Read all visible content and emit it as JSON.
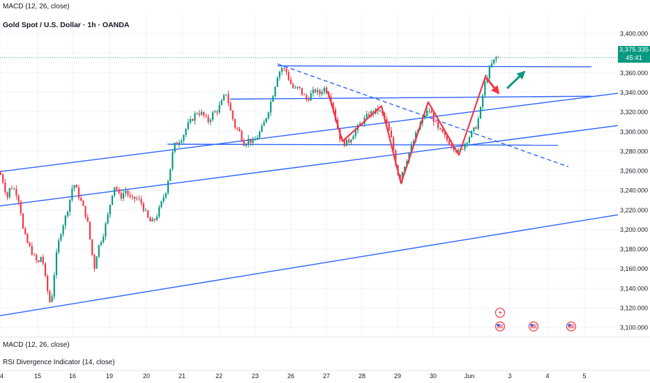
{
  "header": {
    "indicator_top": "MACD (12, 26, close)",
    "symbol_title": "Gold Spot / U.S. Dollar · 1h · OANDA"
  },
  "indicators_bottom": {
    "macd": "MACD (12, 26, close)",
    "rsi": "RSI Divergence Indicator (14, close)"
  },
  "price_badge": {
    "price": "3,375.335",
    "countdown": "45:41",
    "color": "#089981"
  },
  "colors": {
    "up": "#089981",
    "down": "#f23645",
    "trendline": "#2962ff",
    "pattern": "#f23645"
  },
  "chart_data": {
    "type": "candlestick",
    "ylim": [
      3093,
      3420
    ],
    "y_ticks": [
      3100,
      3120,
      3140,
      3160,
      3180,
      3200,
      3220,
      3240,
      3260,
      3280,
      3300,
      3320,
      3340,
      3360,
      3380,
      3400
    ],
    "y_tick_labels": [
      "3,100.000",
      "3,120.000",
      "3,140.000",
      "3,160.000",
      "3,180.000",
      "3,200.000",
      "3,220.000",
      "3,240.000",
      "3,260.000",
      "3,280.000",
      "3,300.000",
      "3,320.000",
      "3,340.000",
      "3,360.000",
      "3,380.000",
      "3,400.000"
    ],
    "x_ticks": [
      "4",
      "15",
      "16",
      "19",
      "20",
      "21",
      "22",
      "23",
      "26",
      "27",
      "28",
      "29",
      "30",
      "Jun",
      "3",
      "4",
      "5"
    ],
    "x_tick_index": [
      0,
      54,
      104,
      157,
      210,
      261,
      314,
      366,
      417,
      468,
      519,
      570,
      621,
      673,
      731,
      785,
      838
    ],
    "last_price": 3375.335,
    "anchors": [
      [
        0,
        3258
      ],
      [
        5,
        3248
      ],
      [
        10,
        3232
      ],
      [
        15,
        3244
      ],
      [
        22,
        3240
      ],
      [
        28,
        3228
      ],
      [
        33,
        3200
      ],
      [
        38,
        3188
      ],
      [
        45,
        3178
      ],
      [
        50,
        3170
      ],
      [
        55,
        3165
      ],
      [
        60,
        3175
      ],
      [
        65,
        3150
      ],
      [
        70,
        3130
      ],
      [
        73,
        3122
      ],
      [
        77,
        3150
      ],
      [
        82,
        3180
      ],
      [
        88,
        3200
      ],
      [
        95,
        3215
      ],
      [
        100,
        3230
      ],
      [
        105,
        3248
      ],
      [
        110,
        3240
      ],
      [
        118,
        3225
      ],
      [
        125,
        3210
      ],
      [
        130,
        3185
      ],
      [
        135,
        3160
      ],
      [
        140,
        3180
      ],
      [
        148,
        3195
      ],
      [
        155,
        3215
      ],
      [
        160,
        3235
      ],
      [
        165,
        3246
      ],
      [
        172,
        3232
      ],
      [
        180,
        3240
      ],
      [
        188,
        3230
      ],
      [
        195,
        3232
      ],
      [
        202,
        3228
      ],
      [
        208,
        3218
      ],
      [
        214,
        3208
      ],
      [
        220,
        3208
      ],
      [
        226,
        3216
      ],
      [
        232,
        3228
      ],
      [
        238,
        3240
      ],
      [
        244,
        3262
      ],
      [
        249,
        3285
      ],
      [
        256,
        3290
      ],
      [
        262,
        3295
      ],
      [
        268,
        3305
      ],
      [
        275,
        3312
      ],
      [
        282,
        3320
      ],
      [
        290,
        3318
      ],
      [
        298,
        3310
      ],
      [
        305,
        3318
      ],
      [
        312,
        3322
      ],
      [
        318,
        3330
      ],
      [
        324,
        3340
      ],
      [
        330,
        3322
      ],
      [
        337,
        3305
      ],
      [
        343,
        3300
      ],
      [
        350,
        3288
      ],
      [
        357,
        3292
      ],
      [
        363,
        3288
      ],
      [
        370,
        3296
      ],
      [
        377,
        3305
      ],
      [
        385,
        3322
      ],
      [
        392,
        3340
      ],
      [
        398,
        3358
      ],
      [
        404,
        3365
      ],
      [
        410,
        3362
      ],
      [
        416,
        3350
      ],
      [
        422,
        3342
      ],
      [
        428,
        3345
      ],
      [
        434,
        3338
      ],
      [
        440,
        3332
      ],
      [
        446,
        3338
      ],
      [
        452,
        3342
      ],
      [
        458,
        3338
      ],
      [
        464,
        3345
      ],
      [
        470,
        3340
      ],
      [
        476,
        3330
      ],
      [
        482,
        3310
      ],
      [
        488,
        3292
      ],
      [
        494,
        3288
      ],
      [
        500,
        3290
      ],
      [
        507,
        3298
      ],
      [
        514,
        3305
      ],
      [
        522,
        3312
      ],
      [
        530,
        3318
      ],
      [
        536,
        3320
      ],
      [
        542,
        3322
      ],
      [
        548,
        3318
      ],
      [
        555,
        3306
      ],
      [
        562,
        3290
      ],
      [
        568,
        3265
      ],
      [
        573,
        3250
      ],
      [
        578,
        3262
      ],
      [
        585,
        3275
      ],
      [
        592,
        3288
      ],
      [
        598,
        3300
      ],
      [
        604,
        3310
      ],
      [
        610,
        3318
      ],
      [
        616,
        3322
      ],
      [
        622,
        3312
      ],
      [
        628,
        3302
      ],
      [
        634,
        3298
      ],
      [
        640,
        3292
      ],
      [
        646,
        3288
      ],
      [
        652,
        3283
      ],
      [
        658,
        3278
      ],
      [
        664,
        3285
      ],
      [
        670,
        3292
      ],
      [
        676,
        3298
      ],
      [
        682,
        3304
      ],
      [
        688,
        3318
      ],
      [
        694,
        3345
      ],
      [
        700,
        3360
      ],
      [
        706,
        3370
      ],
      [
        712,
        3376
      ],
      [
        716,
        3375
      ]
    ],
    "trend_lines": [
      {
        "name": "upper-channel",
        "from": [
          0,
          3259
        ],
        "to": [
          886,
          3339
        ]
      },
      {
        "name": "middle-channel",
        "from": [
          0,
          3224
        ],
        "to": [
          886,
          3306
        ]
      },
      {
        "name": "lower-channel",
        "from": [
          0,
          3112
        ],
        "to": [
          886,
          3215
        ]
      },
      {
        "name": "resistance-high",
        "from": [
          398,
          3367
        ],
        "to": [
          848,
          3366
        ]
      },
      {
        "name": "resistance-mid",
        "from": [
          330,
          3333
        ],
        "to": [
          848,
          3336
        ]
      },
      {
        "name": "support",
        "from": [
          240,
          3287
        ],
        "to": [
          800,
          3286
        ]
      },
      {
        "name": "dashed-downtrend",
        "from": [
          398,
          3369
        ],
        "to": [
          815,
          3264
        ],
        "dashed": true
      }
    ],
    "pattern_zigzag": [
      [
        470,
        3341
      ],
      [
        491,
        3290
      ],
      [
        547,
        3326
      ],
      [
        575,
        3247
      ],
      [
        614,
        3330
      ],
      [
        658,
        3276
      ],
      [
        697,
        3358
      ]
    ],
    "arrows": [
      {
        "name": "pullback-arrow",
        "from": [
          697,
          3355
        ],
        "to": [
          715,
          3339
        ],
        "color": "#f23645"
      },
      {
        "name": "bullish-arrow",
        "from": [
          727,
          3344
        ],
        "to": [
          752,
          3361
        ],
        "color": "#089981"
      }
    ],
    "event_icons": [
      {
        "name": "flash-icon",
        "x": 717,
        "y": 3115
      },
      {
        "name": "us-flag-icon",
        "x": 717,
        "y": 3101
      },
      {
        "name": "us-flag-icon",
        "x": 765,
        "y": 3101
      },
      {
        "name": "us-flag-icon",
        "x": 819,
        "y": 3101
      }
    ]
  }
}
